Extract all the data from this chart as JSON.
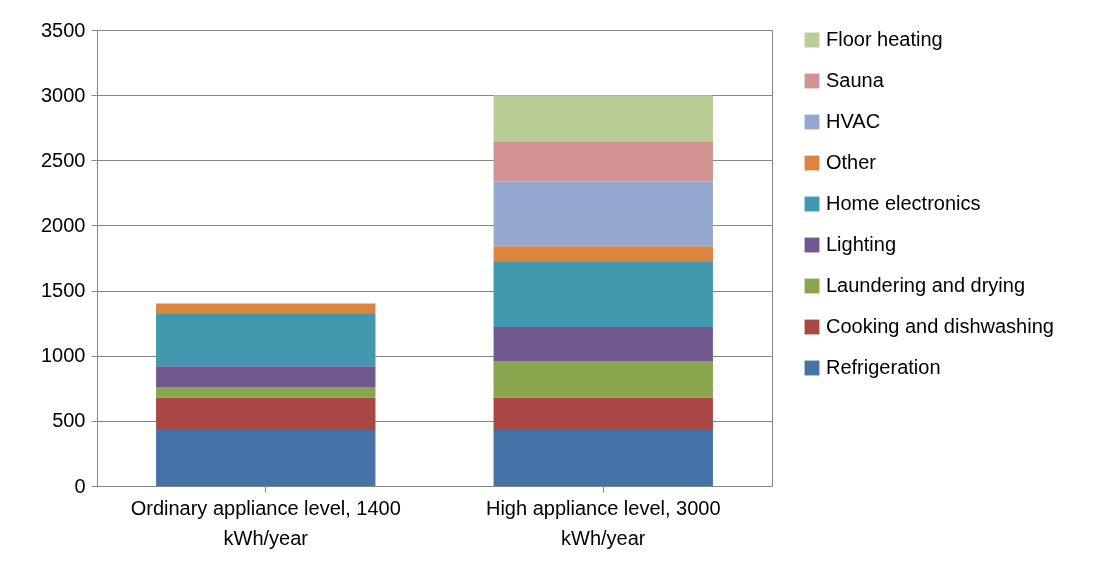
{
  "chart_data": {
    "type": "bar",
    "stacked": true,
    "categories": [
      "Ordinary appliance level, 1400 kWh/year",
      "High appliance level, 3000 kWh/year"
    ],
    "series": [
      {
        "name": "Refrigeration",
        "color": "#4572a7",
        "values": [
          430,
          430
        ]
      },
      {
        "name": "Cooking and dishwashing",
        "color": "#aa4643",
        "values": [
          250,
          250
        ]
      },
      {
        "name": "Laundering and drying",
        "color": "#89a54e",
        "values": [
          80,
          280
        ]
      },
      {
        "name": "Lighting",
        "color": "#71588f",
        "values": [
          160,
          260
        ]
      },
      {
        "name": "Home electronics",
        "color": "#4198af",
        "values": [
          400,
          500
        ]
      },
      {
        "name": "Other",
        "color": "#db843d",
        "values": [
          80,
          120
        ]
      },
      {
        "name": "HVAC",
        "color": "#93a9cf",
        "values": [
          null,
          500
        ]
      },
      {
        "name": "Sauna",
        "color": "#d19392",
        "values": [
          null,
          300
        ]
      },
      {
        "name": "Floor heating",
        "color": "#b9cd96",
        "values": [
          null,
          360
        ]
      }
    ],
    "ylim": [
      0,
      3500
    ],
    "yticks": [
      0,
      500,
      1000,
      1500,
      2000,
      2500,
      3000,
      3500
    ],
    "grid": "y",
    "legend": "right"
  }
}
